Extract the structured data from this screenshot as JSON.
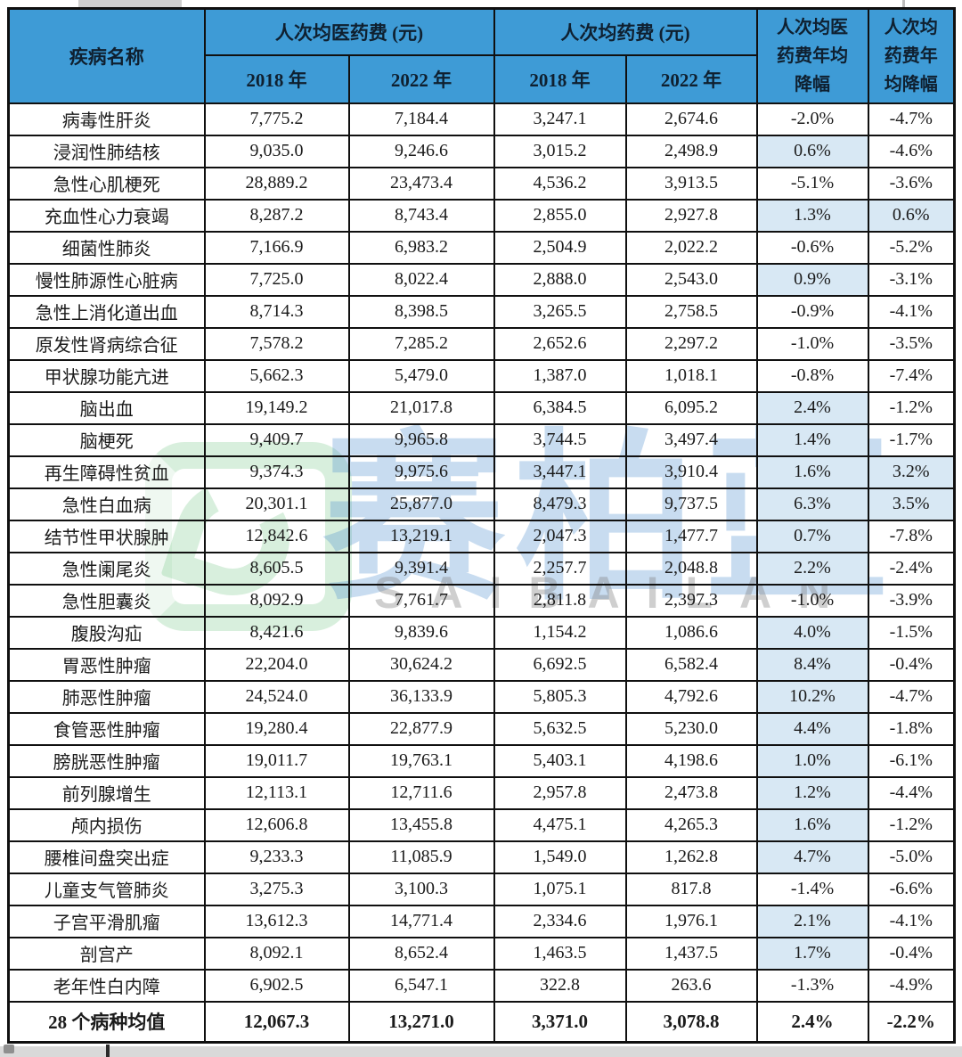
{
  "colors": {
    "header_bg": "#3e9bd6",
    "header_text": "#0f2030",
    "positive_highlight_bg": "#d8e8f4",
    "border": "#101010",
    "watermark_green": "#68c07d",
    "watermark_blue": "#4a8ccd"
  },
  "watermark": {
    "cn": "赛柏蓝",
    "latin": "SAIBAILAN"
  },
  "table": {
    "header": {
      "disease": "疾病名称",
      "group_med": "人次均医药费 (元)",
      "group_drug": "人次均药费 (元)",
      "year_2018": "2018 年",
      "year_2022": "2022 年",
      "med_decline": "人次均医\n药费年均\n降幅",
      "drug_decline": "人次均\n药费年\n均降幅"
    },
    "highlight_rule": "In the 28 disease rows, annual-change cells with positive values (no leading minus) have a light blue background"
  },
  "chart_data": {
    "type": "table",
    "columns": [
      "疾病名称",
      "人次均医药费 (元) 2018 年",
      "人次均医药费 (元) 2022 年",
      "人次均药费 (元) 2018 年",
      "人次均药费 (元) 2022 年",
      "人次均医药费年均降幅",
      "人次均药费年均降幅"
    ],
    "rows": [
      [
        "病毒性肝炎",
        "7,775.2",
        "7,184.4",
        "3,247.1",
        "2,674.6",
        "-2.0%",
        "-4.7%"
      ],
      [
        "浸润性肺结核",
        "9,035.0",
        "9,246.6",
        "3,015.2",
        "2,498.9",
        "0.6%",
        "-4.6%"
      ],
      [
        "急性心肌梗死",
        "28,889.2",
        "23,473.4",
        "4,536.2",
        "3,913.5",
        "-5.1%",
        "-3.6%"
      ],
      [
        "充血性心力衰竭",
        "8,287.2",
        "8,743.4",
        "2,855.0",
        "2,927.8",
        "1.3%",
        "0.6%"
      ],
      [
        "细菌性肺炎",
        "7,166.9",
        "6,983.2",
        "2,504.9",
        "2,022.2",
        "-0.6%",
        "-5.2%"
      ],
      [
        "慢性肺源性心脏病",
        "7,725.0",
        "8,022.4",
        "2,888.0",
        "2,543.0",
        "0.9%",
        "-3.1%"
      ],
      [
        "急性上消化道出血",
        "8,714.3",
        "8,398.5",
        "3,265.5",
        "2,758.5",
        "-0.9%",
        "-4.1%"
      ],
      [
        "原发性肾病综合征",
        "7,578.2",
        "7,285.2",
        "2,652.6",
        "2,297.2",
        "-1.0%",
        "-3.5%"
      ],
      [
        "甲状腺功能亢进",
        "5,662.3",
        "5,479.0",
        "1,387.0",
        "1,018.1",
        "-0.8%",
        "-7.4%"
      ],
      [
        "脑出血",
        "19,149.2",
        "21,017.8",
        "6,384.5",
        "6,095.2",
        "2.4%",
        "-1.2%"
      ],
      [
        "脑梗死",
        "9,409.7",
        "9,965.8",
        "3,744.5",
        "3,497.4",
        "1.4%",
        "-1.7%"
      ],
      [
        "再生障碍性贫血",
        "9,374.3",
        "9,975.6",
        "3,447.1",
        "3,910.4",
        "1.6%",
        "3.2%"
      ],
      [
        "急性白血病",
        "20,301.1",
        "25,877.0",
        "8,479.3",
        "9,737.5",
        "6.3%",
        "3.5%"
      ],
      [
        "结节性甲状腺肿",
        "12,842.6",
        "13,219.1",
        "2,047.3",
        "1,477.7",
        "0.7%",
        "-7.8%"
      ],
      [
        "急性阑尾炎",
        "8,605.5",
        "9,391.4",
        "2,257.7",
        "2,048.8",
        "2.2%",
        "-2.4%"
      ],
      [
        "急性胆囊炎",
        "8,092.9",
        "7,761.7",
        "2,811.8",
        "2,397.3",
        "-1.0%",
        "-3.9%"
      ],
      [
        "腹股沟疝",
        "8,421.6",
        "9,839.6",
        "1,154.2",
        "1,086.6",
        "4.0%",
        "-1.5%"
      ],
      [
        "胃恶性肿瘤",
        "22,204.0",
        "30,624.2",
        "6,692.5",
        "6,582.4",
        "8.4%",
        "-0.4%"
      ],
      [
        "肺恶性肿瘤",
        "24,524.0",
        "36,133.9",
        "5,805.3",
        "4,792.6",
        "10.2%",
        "-4.7%"
      ],
      [
        "食管恶性肿瘤",
        "19,280.4",
        "22,877.9",
        "5,632.5",
        "5,230.0",
        "4.4%",
        "-1.8%"
      ],
      [
        "膀胱恶性肿瘤",
        "19,011.7",
        "19,763.1",
        "5,403.1",
        "4,198.6",
        "1.0%",
        "-6.1%"
      ],
      [
        "前列腺增生",
        "12,113.1",
        "12,711.6",
        "2,957.8",
        "2,473.8",
        "1.2%",
        "-4.4%"
      ],
      [
        "颅内损伤",
        "12,606.8",
        "13,455.8",
        "4,475.1",
        "4,265.3",
        "1.6%",
        "-1.2%"
      ],
      [
        "腰椎间盘突出症",
        "9,233.3",
        "11,085.9",
        "1,549.0",
        "1,262.8",
        "4.7%",
        "-5.0%"
      ],
      [
        "儿童支气管肺炎",
        "3,275.3",
        "3,100.3",
        "1,075.1",
        "817.8",
        "-1.4%",
        "-6.6%"
      ],
      [
        "子宫平滑肌瘤",
        "13,612.3",
        "14,771.4",
        "2,334.6",
        "1,976.1",
        "2.1%",
        "-4.1%"
      ],
      [
        "剖宫产",
        "8,092.1",
        "8,652.4",
        "1,463.5",
        "1,437.5",
        "1.7%",
        "-0.4%"
      ],
      [
        "老年性白内障",
        "6,902.5",
        "6,547.1",
        "322.8",
        "263.6",
        "-1.3%",
        "-4.9%"
      ]
    ],
    "summary_row": [
      "28 个病种均值",
      "12,067.3",
      "13,271.0",
      "3,371.0",
      "3,078.8",
      "2.4%",
      "-2.2%"
    ]
  }
}
